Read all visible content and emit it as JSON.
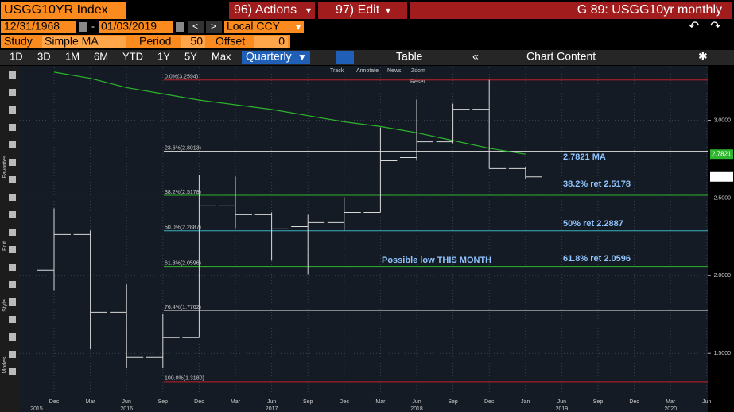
{
  "ui": {
    "header": {
      "security": "USGG10YR Index",
      "actions": "96) Actions",
      "edit": "97) Edit",
      "title": "G 89: USGG10yr monthly"
    },
    "dates": {
      "start": "12/31/1968",
      "sep": "-",
      "end": "01/03/2019",
      "currency": "Local CCY"
    },
    "study": {
      "label": "Study",
      "name": "Simple MA",
      "period_label": "Period",
      "period": 50,
      "offset_label": "Offset",
      "offset": 0
    },
    "ranges": [
      "1D",
      "3D",
      "1M",
      "6M",
      "YTD",
      "1Y",
      "5Y",
      "Max"
    ],
    "frequency": "Quarterly",
    "table": "Table",
    "chart_content": "Chart Content",
    "tools": [
      "Track",
      "Annotate",
      "News",
      "Zoom"
    ],
    "reset": "Reset",
    "side": [
      "Favorites",
      "Edit",
      "Style",
      "Modes"
    ]
  },
  "chart_data": {
    "type": "ohlc",
    "categories": [
      "Dec",
      "Mar",
      "Jun",
      "Sep",
      "Dec",
      "Mar",
      "Jun",
      "Sep",
      "Dec",
      "Mar",
      "Jun",
      "Sep",
      "Dec",
      "Jan",
      "Jun",
      "Sep",
      "Dec",
      "Mar",
      "Jun"
    ],
    "years": [
      "2015",
      null,
      "2016",
      null,
      null,
      null,
      "2017",
      null,
      null,
      null,
      "2018",
      null,
      null,
      null,
      "2019",
      null,
      null,
      "2020",
      null
    ],
    "ohlc": {
      "open": [
        2.036,
        2.265,
        1.765,
        1.474,
        1.602,
        2.449,
        2.393,
        2.316,
        2.342,
        2.408,
        2.76,
        2.862,
        3.071,
        2.689,
        null,
        null,
        null,
        null,
        null
      ],
      "high": [
        2.434,
        2.291,
        1.944,
        1.755,
        2.648,
        2.638,
        2.408,
        2.393,
        2.505,
        2.954,
        3.133,
        3.107,
        3.26,
        2.7,
        null,
        null,
        null,
        null,
        null
      ],
      "low": [
        1.908,
        1.526,
        1.408,
        1.408,
        1.602,
        2.306,
        2.097,
        2.01,
        2.291,
        2.408,
        2.74,
        2.852,
        2.689,
        2.62,
        null,
        null,
        null,
        null,
        null
      ],
      "close": [
        2.265,
        1.765,
        1.474,
        1.602,
        2.449,
        2.393,
        2.301,
        2.342,
        2.408,
        2.74,
        2.862,
        3.071,
        2.689,
        2.6362,
        null,
        null,
        null,
        null,
        null
      ],
      "color": "#d8d8d8"
    },
    "series": [
      {
        "name": "MA",
        "color": "#2db52d",
        "values": [
          3.31,
          3.27,
          3.21,
          3.17,
          3.13,
          3.1,
          3.07,
          3.03,
          2.99,
          2.96,
          2.92,
          2.87,
          2.82,
          2.7821,
          null,
          null,
          null,
          null,
          null
        ]
      }
    ],
    "levels": [
      {
        "label": "0.0%(3.2594)",
        "value": 3.2594,
        "color": "#c0202a"
      },
      {
        "label": "23.6%(2.8013)",
        "value": 2.8013,
        "color": "#c8c8c8"
      },
      {
        "label": "38.2%(2.5178)",
        "value": 2.5178,
        "color": "#2db52d"
      },
      {
        "label": "50.0%(2.2887)",
        "value": 2.2887,
        "color": "#3ab0c0"
      },
      {
        "label": "61.8%(2.0596)",
        "value": 2.0596,
        "color": "#2db52d"
      },
      {
        "label": "76.4%(1.7762)",
        "value": 1.7762,
        "color": "#c8c8c8"
      },
      {
        "label": "100.0%(1.3180)",
        "value": 1.318,
        "color": "#c0202a"
      }
    ],
    "annotations": [
      "2.7821   MA",
      "38.2% ret 2.5178",
      "50% ret 2.2887",
      "61.8% ret 2.0596",
      "Possible low THIS MONTH"
    ],
    "markers": [
      {
        "value": 2.7821,
        "color": "#2db52d"
      },
      {
        "value": 2.6362,
        "color": "#ffffff"
      }
    ],
    "ylim": [
      1.22,
      3.34
    ],
    "yticks": [
      {
        "value": 1.5,
        "label": "1.5000"
      },
      {
        "value": 2.0,
        "label": "2.0000"
      },
      {
        "value": 2.5,
        "label": "2.5000"
      },
      {
        "value": 3.0,
        "label": "3.0000"
      }
    ],
    "grid": true
  }
}
